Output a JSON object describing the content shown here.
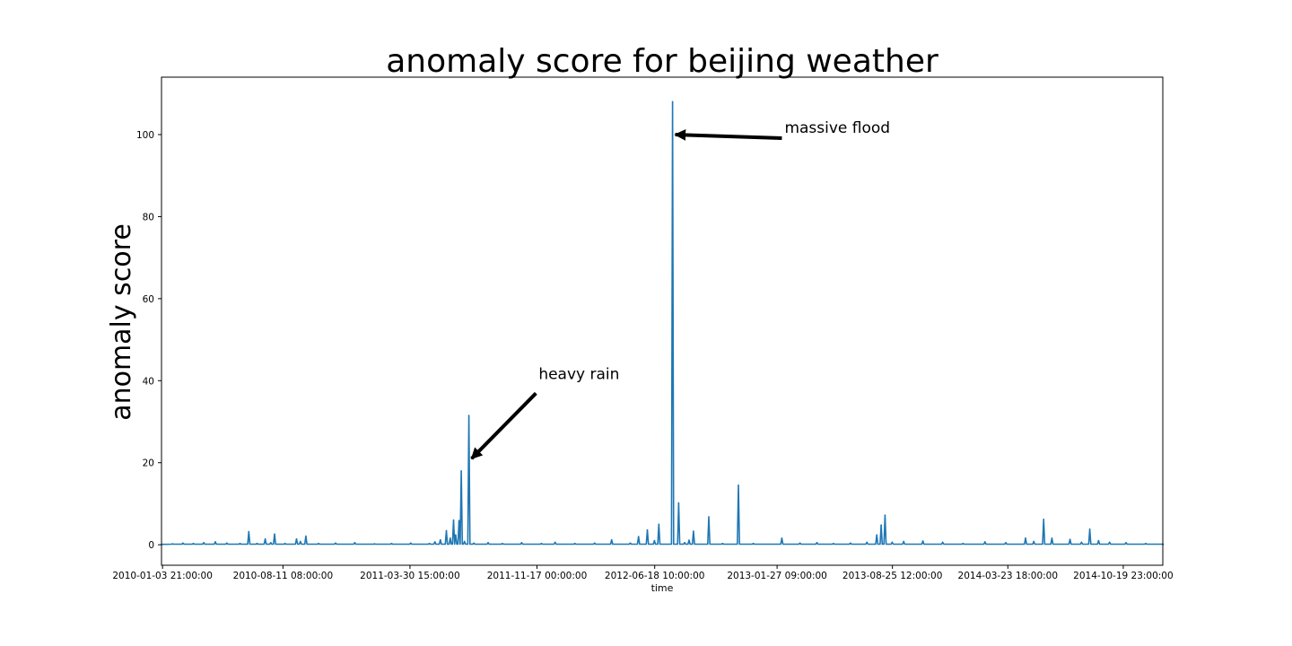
{
  "chart_data": {
    "type": "line",
    "title": "anomaly score for beijing weather",
    "xlabel": "time",
    "ylabel": "anomaly score",
    "xlim": [
      "2010-01-02",
      "2014-12-31"
    ],
    "ylim": [
      -5,
      114
    ],
    "grid": false,
    "x_ticks": [
      "2010-01-03 21:00:00",
      "2010-08-11 08:00:00",
      "2011-03-30 15:00:00",
      "2011-11-17 00:00:00",
      "2012-06-18 10:00:00",
      "2013-01-27 09:00:00",
      "2013-08-25 12:00:00",
      "2014-03-23 18:00:00",
      "2014-10-19 23:00:00"
    ],
    "y_ticks": [
      0,
      20,
      40,
      60,
      80,
      100
    ],
    "series": [
      {
        "color": "#1f77b4",
        "points": [
          [
            "2010-01-02",
            0.1
          ],
          [
            "2010-01-22",
            0.2
          ],
          [
            "2010-02-10",
            0.4
          ],
          [
            "2010-03-01",
            0.3
          ],
          [
            "2010-03-20",
            0.5
          ],
          [
            "2010-04-10",
            0.7
          ],
          [
            "2010-05-01",
            0.4
          ],
          [
            "2010-05-25",
            0.3
          ],
          [
            "2010-06-10",
            3.2
          ],
          [
            "2010-06-25",
            0.3
          ],
          [
            "2010-07-10",
            1.4
          ],
          [
            "2010-07-20",
            0.5
          ],
          [
            "2010-07-27",
            2.6
          ],
          [
            "2010-08-15",
            0.3
          ],
          [
            "2010-09-05",
            1.4
          ],
          [
            "2010-09-12",
            0.8
          ],
          [
            "2010-09-22",
            2.1
          ],
          [
            "2010-10-15",
            0.3
          ],
          [
            "2010-11-15",
            0.4
          ],
          [
            "2010-12-20",
            0.5
          ],
          [
            "2011-01-25",
            0.2
          ],
          [
            "2011-02-25",
            0.3
          ],
          [
            "2011-04-01",
            0.4
          ],
          [
            "2011-05-05",
            0.3
          ],
          [
            "2011-05-15",
            0.7
          ],
          [
            "2011-05-25",
            1.2
          ],
          [
            "2011-06-05",
            3.4
          ],
          [
            "2011-06-12",
            1.6
          ],
          [
            "2011-06-18",
            6.0
          ],
          [
            "2011-06-22",
            2.4
          ],
          [
            "2011-06-28",
            5.9
          ],
          [
            "2011-07-02",
            18.0
          ],
          [
            "2011-07-08",
            0.8
          ],
          [
            "2011-07-16",
            31.5
          ],
          [
            "2011-07-25",
            0.4
          ],
          [
            "2011-08-20",
            0.5
          ],
          [
            "2011-09-15",
            0.3
          ],
          [
            "2011-10-20",
            0.5
          ],
          [
            "2011-11-25",
            0.3
          ],
          [
            "2011-12-20",
            0.6
          ],
          [
            "2012-01-25",
            0.3
          ],
          [
            "2012-03-01",
            0.4
          ],
          [
            "2012-04-01",
            1.2
          ],
          [
            "2012-05-05",
            0.4
          ],
          [
            "2012-05-20",
            2.0
          ],
          [
            "2012-06-05",
            3.6
          ],
          [
            "2012-06-18",
            1.0
          ],
          [
            "2012-06-26",
            5.0
          ],
          [
            "2012-07-21",
            108.0
          ],
          [
            "2012-08-01",
            10.2
          ],
          [
            "2012-08-12",
            0.5
          ],
          [
            "2012-08-20",
            1.1
          ],
          [
            "2012-08-28",
            3.3
          ],
          [
            "2012-09-25",
            6.8
          ],
          [
            "2012-10-20",
            0.3
          ],
          [
            "2012-11-18",
            14.5
          ],
          [
            "2012-12-15",
            0.3
          ],
          [
            "2013-02-05",
            1.6
          ],
          [
            "2013-03-10",
            0.4
          ],
          [
            "2013-04-10",
            0.5
          ],
          [
            "2013-05-10",
            0.3
          ],
          [
            "2013-06-10",
            0.4
          ],
          [
            "2013-07-10",
            0.6
          ],
          [
            "2013-07-28",
            2.4
          ],
          [
            "2013-08-05",
            4.8
          ],
          [
            "2013-08-12",
            7.2
          ],
          [
            "2013-08-25",
            0.6
          ],
          [
            "2013-09-15",
            0.8
          ],
          [
            "2013-10-20",
            0.9
          ],
          [
            "2013-11-25",
            0.6
          ],
          [
            "2014-01-01",
            0.3
          ],
          [
            "2014-02-10",
            0.7
          ],
          [
            "2014-03-20",
            0.5
          ],
          [
            "2014-04-25",
            1.6
          ],
          [
            "2014-05-10",
            0.8
          ],
          [
            "2014-05-28",
            6.2
          ],
          [
            "2014-06-12",
            1.6
          ],
          [
            "2014-07-15",
            1.3
          ],
          [
            "2014-08-05",
            0.6
          ],
          [
            "2014-08-20",
            3.8
          ],
          [
            "2014-09-05",
            1.0
          ],
          [
            "2014-09-25",
            0.6
          ],
          [
            "2014-10-25",
            0.5
          ],
          [
            "2014-11-30",
            0.3
          ],
          [
            "2014-12-31",
            0.1
          ]
        ]
      }
    ],
    "annotations": [
      {
        "text": "heavy rain",
        "target": [
          "2011-07-16",
          21
        ],
        "text_at": [
          "2011-11-20",
          40
        ]
      },
      {
        "text": "massive flood",
        "target": [
          "2012-07-21",
          100
        ],
        "text_at": [
          "2013-02-10",
          100
        ]
      }
    ]
  }
}
